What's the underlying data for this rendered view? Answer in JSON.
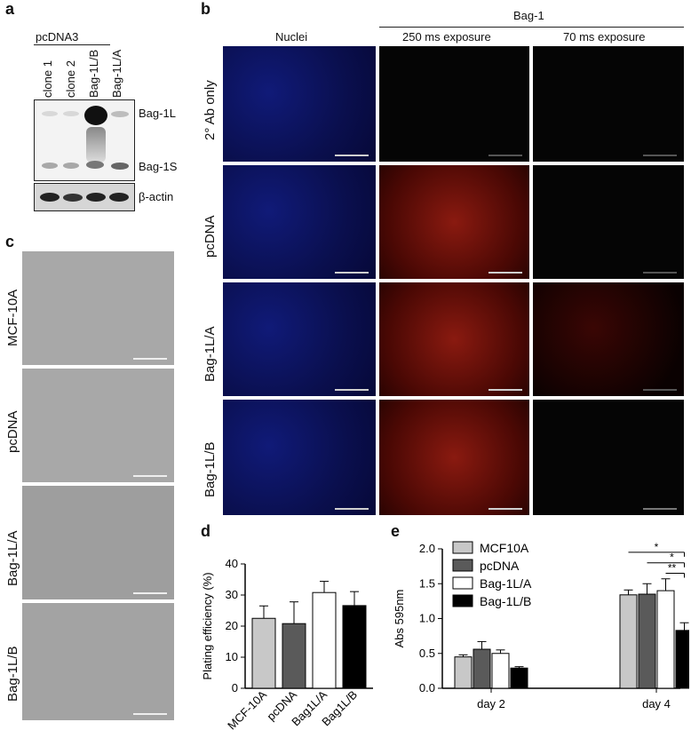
{
  "panel_a": {
    "label": "a",
    "group": "pcDNA3",
    "lanes": [
      "clone 1",
      "clone 2",
      "Bag-1L/B",
      "Bag-1L/A"
    ],
    "bands": {
      "upper": "Bag-1L",
      "lower": "Bag-1S",
      "loading": "β-actin"
    }
  },
  "panel_b": {
    "label": "b",
    "header": "Bag-1",
    "columns": [
      "Nuclei",
      "250 ms exposure",
      "70 ms exposure"
    ],
    "rows": [
      "2° Ab only",
      "pcDNA",
      "Bag-1L/A",
      "Bag-1L/B"
    ]
  },
  "panel_c": {
    "label": "c",
    "rows": [
      "MCF-10A",
      "pcDNA",
      "Bag-1L/A",
      "Bag-1L/B"
    ]
  },
  "panel_d": {
    "label": "d"
  },
  "panel_e": {
    "label": "e"
  },
  "colors": {
    "light_gray": "#c8c8c8",
    "dark_gray": "#5a5a5a",
    "white": "#ffffff",
    "black": "#000000"
  },
  "chart_data": [
    {
      "type": "bar",
      "ylabel": "Plating efficiency (%)",
      "ylim": [
        0,
        40
      ],
      "yticks": [
        0,
        10,
        20,
        30,
        40
      ],
      "categories": [
        "MCF-10A",
        "pcDNA",
        "Bag1L/A",
        "Bag1L/B"
      ],
      "values": [
        22.5,
        20.8,
        30.8,
        26.6
      ],
      "errors": [
        4.0,
        7.0,
        3.6,
        4.5
      ],
      "colors": [
        "#c8c8c8",
        "#5a5a5a",
        "#ffffff",
        "#000000"
      ]
    },
    {
      "type": "bar",
      "ylabel": "Abs 595nm",
      "ylim": [
        0,
        2.0
      ],
      "yticks": [
        "0.0",
        "0.5",
        "1.0",
        "1.5",
        "2.0"
      ],
      "categories": [
        "day 2",
        "day 4"
      ],
      "series": [
        {
          "name": "MCF10A",
          "values": [
            0.45,
            1.34
          ],
          "errors": [
            0.03,
            0.07
          ],
          "color": "#c8c8c8"
        },
        {
          "name": "pcDNA",
          "values": [
            0.56,
            1.35
          ],
          "errors": [
            0.11,
            0.15
          ],
          "color": "#5a5a5a"
        },
        {
          "name": "Bag-1L/A",
          "values": [
            0.5,
            1.4
          ],
          "errors": [
            0.05,
            0.17
          ],
          "color": "#ffffff"
        },
        {
          "name": "Bag-1L/B",
          "values": [
            0.29,
            0.83
          ],
          "errors": [
            0.02,
            0.11
          ],
          "color": "#000000"
        }
      ],
      "significance": [
        "*",
        "*",
        "**"
      ],
      "legend": "top-left"
    }
  ]
}
